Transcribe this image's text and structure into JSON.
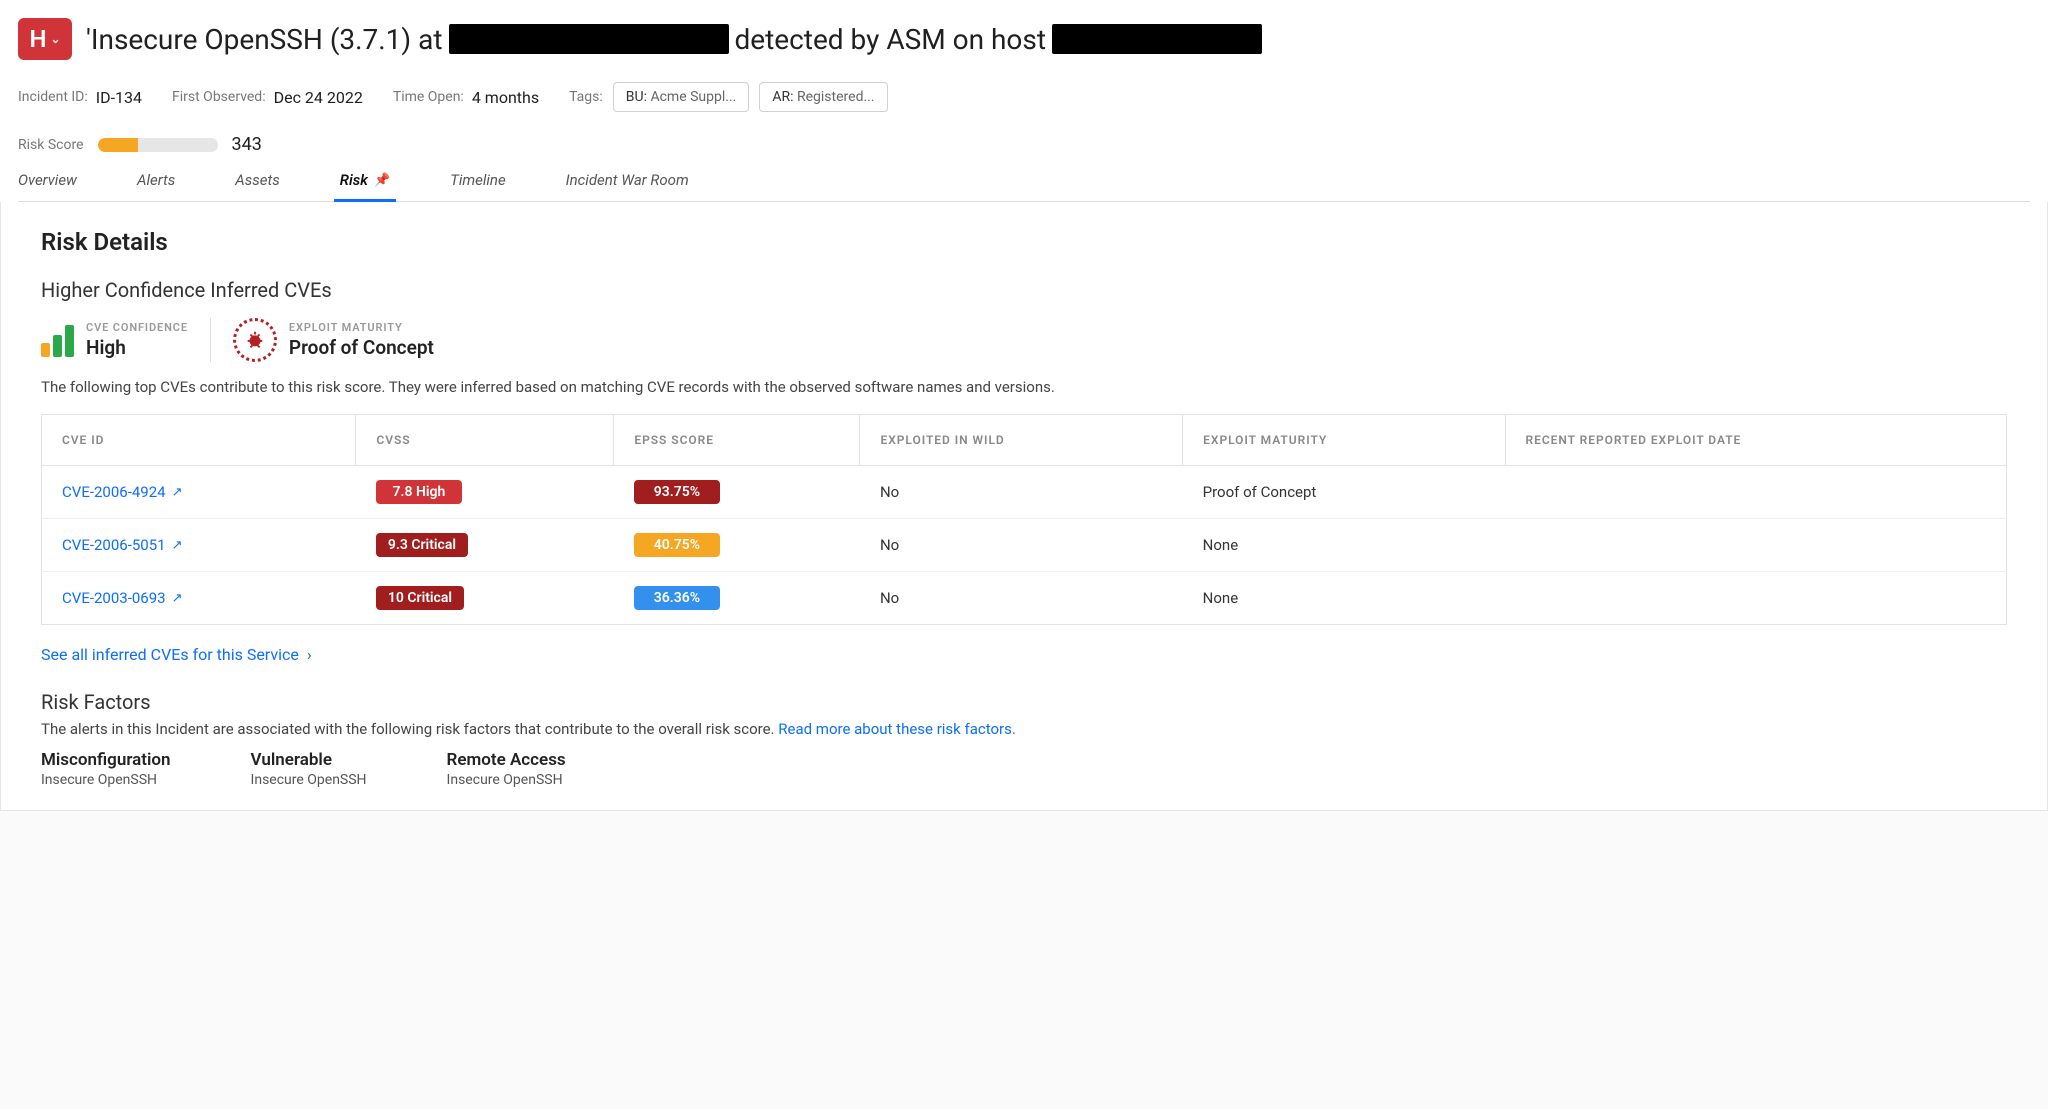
{
  "header": {
    "severity_letter": "H",
    "title_prefix": "'Insecure OpenSSH (3.7.1) at",
    "title_middle": "detected by ASM on host"
  },
  "meta": {
    "incident_id_label": "Incident ID:",
    "incident_id": "ID-134",
    "first_observed_label": "First Observed:",
    "first_observed": "Dec 24 2022",
    "time_open_label": "Time Open:",
    "time_open": "4 months",
    "tags_label": "Tags:",
    "tags": [
      {
        "key": "BU:",
        "value": "Acme Suppl..."
      },
      {
        "key": "AR:",
        "value": "Registered..."
      }
    ]
  },
  "risk_score": {
    "label": "Risk Score",
    "value": "343",
    "fill_pct": 34
  },
  "tabs": [
    {
      "label": "Overview",
      "active": false
    },
    {
      "label": "Alerts",
      "active": false
    },
    {
      "label": "Assets",
      "active": false
    },
    {
      "label": "Risk",
      "active": true,
      "pinned": true
    },
    {
      "label": "Timeline",
      "active": false
    },
    {
      "label": "Incident War Room",
      "active": false
    }
  ],
  "risk_details": {
    "section_title": "Risk Details",
    "subsection_title": "Higher Confidence Inferred CVEs",
    "cve_confidence_label": "CVE CONFIDENCE",
    "cve_confidence_value": "High",
    "exploit_maturity_label": "EXPLOIT MATURITY",
    "exploit_maturity_value": "Proof of Concept",
    "description": "The following top CVEs contribute to this risk score. They were inferred based on matching CVE records with the observed software names and versions.",
    "see_all": "See all inferred CVEs for this Service"
  },
  "cve_table": {
    "columns": [
      "CVE ID",
      "CVSS",
      "EPSS SCORE",
      "EXPLOITED IN WILD",
      "EXPLOIT MATURITY",
      "RECENT REPORTED EXPLOIT DATE"
    ],
    "rows": [
      {
        "cve_id": "CVE-2006-4924",
        "cvss_text": "7.8 High",
        "cvss_color": "#d13438",
        "epss_text": "93.75%",
        "epss_color": "#a01e1e",
        "exploited_in_wild": "No",
        "exploit_maturity": "Proof of Concept",
        "recent_date": ""
      },
      {
        "cve_id": "CVE-2006-5051",
        "cvss_text": "9.3 Critical",
        "cvss_color": "#a01e1e",
        "epss_text": "40.75%",
        "epss_color": "#f5a623",
        "exploited_in_wild": "No",
        "exploit_maturity": "None",
        "recent_date": ""
      },
      {
        "cve_id": "CVE-2003-0693",
        "cvss_text": "10 Critical",
        "cvss_color": "#a01e1e",
        "epss_text": "36.36%",
        "epss_color": "#3390ec",
        "exploited_in_wild": "No",
        "exploit_maturity": "None",
        "recent_date": ""
      }
    ]
  },
  "risk_factors": {
    "title": "Risk Factors",
    "description": "The alerts in this Incident are associated with the following risk factors that contribute to the overall risk score.",
    "link_text": "Read more about these risk factors.",
    "items": [
      {
        "name": "Misconfiguration",
        "sub": "Insecure OpenSSH"
      },
      {
        "name": "Vulnerable",
        "sub": "Insecure OpenSSH"
      },
      {
        "name": "Remote Access",
        "sub": "Insecure OpenSSH"
      }
    ]
  },
  "colors": {
    "accent": "#0d6efd",
    "severity_badge": "#d13438",
    "risk_bar_fill": "#f5a623"
  }
}
